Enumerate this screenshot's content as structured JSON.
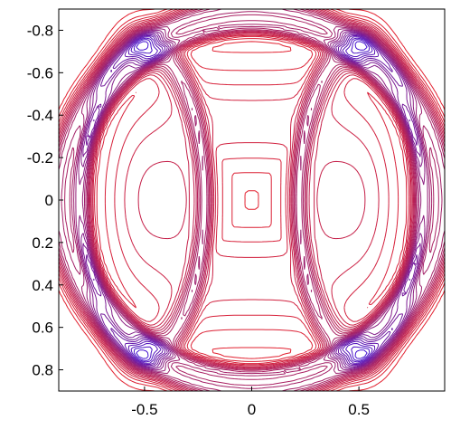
{
  "chart_data": {
    "type": "contour",
    "title": "",
    "xlabel": "",
    "ylabel": "",
    "xlim": [
      -0.9,
      0.9
    ],
    "ylim": [
      -0.9,
      0.9
    ],
    "y_inverted": true,
    "x_ticks": [
      {
        "value": -0.5,
        "label": "-0.5"
      },
      {
        "value": 0,
        "label": "0"
      },
      {
        "value": 0.5,
        "label": "0.5"
      }
    ],
    "y_ticks": [
      {
        "value": -0.8,
        "label": "-0.8"
      },
      {
        "value": -0.6,
        "label": "-0.6"
      },
      {
        "value": -0.4,
        "label": "-0.4"
      },
      {
        "value": -0.2,
        "label": "-0.2"
      },
      {
        "value": 0,
        "label": "0"
      },
      {
        "value": 0.2,
        "label": "0.2"
      },
      {
        "value": 0.4,
        "label": "0.4"
      },
      {
        "value": 0.6,
        "label": "0.6"
      },
      {
        "value": 0.8,
        "label": "0.8"
      }
    ],
    "grid": false,
    "legend": "none",
    "colormap": [
      "#e8202a",
      "#a0206a",
      "#3a10d8"
    ],
    "features": {
      "outer_ring_radius": 0.9,
      "inner_ring_radius": 0.82,
      "lens_centers_x": [
        -0.5,
        0.5
      ],
      "lens_half_width": 0.28,
      "lens_half_height": 0.72,
      "crossing_points": [
        [
          -0.5,
          -0.72
        ],
        [
          0.5,
          -0.72
        ],
        [
          -0.5,
          0.72
        ],
        [
          0.5,
          0.72
        ]
      ],
      "central_plateau": {
        "x": [
          -0.27,
          0.27
        ],
        "y": [
          -0.37,
          0.37
        ]
      }
    },
    "contour_levels": 24
  }
}
